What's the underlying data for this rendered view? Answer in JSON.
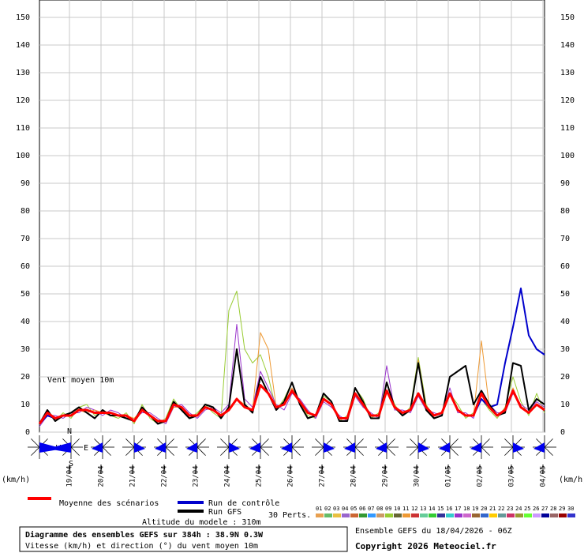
{
  "chart_data": {
    "type": "line",
    "ylim": [
      0,
      150
    ],
    "yticks": [
      0,
      10,
      20,
      30,
      40,
      50,
      60,
      70,
      80,
      90,
      100,
      110,
      120,
      130,
      140,
      150
    ],
    "grid": true,
    "categories": [
      null,
      null,
      null,
      "19/04",
      null,
      null,
      null,
      "20/04",
      null,
      null,
      null,
      "21/04",
      null,
      null,
      null,
      "22/04",
      null,
      null,
      null,
      "23/04",
      null,
      null,
      null,
      "24/04",
      null,
      null,
      null,
      "25/04",
      null,
      null,
      null,
      "26/04",
      null,
      null,
      null,
      "27/04",
      null,
      null,
      null,
      "28/04",
      null,
      null,
      null,
      "29/04",
      null,
      null,
      null,
      "30/04",
      null,
      null,
      null,
      "01/05",
      null,
      null,
      null,
      "02/05",
      null,
      null,
      null,
      "03/05",
      null,
      null,
      null,
      "04/05",
      null
    ],
    "series": [
      {
        "name": "Moyenne des scénarios",
        "color": "#ff0000",
        "values": [
          3,
          7,
          5,
          6,
          6,
          8,
          8,
          7,
          7,
          7,
          6,
          6,
          4,
          8,
          6,
          4,
          4,
          10,
          9,
          6,
          6,
          9,
          8,
          6,
          8,
          12,
          9,
          8,
          17,
          14,
          9,
          10,
          15,
          11,
          7,
          6,
          12,
          10,
          5,
          5,
          14,
          10,
          6,
          6,
          15,
          9,
          7,
          8,
          14,
          9,
          6,
          7,
          14,
          8,
          6,
          6,
          14,
          9,
          6,
          8,
          15,
          9,
          7,
          10,
          8
        ]
      },
      {
        "name": "Run de contrôle",
        "color": "#0000cc",
        "values": [
          3,
          6,
          5,
          6,
          6,
          8,
          8,
          7,
          7,
          7,
          6,
          6,
          4,
          8,
          6,
          4,
          4,
          10,
          9,
          6,
          6,
          9,
          8,
          6,
          8,
          12,
          9,
          8,
          17,
          14,
          9,
          10,
          15,
          11,
          7,
          6,
          12,
          10,
          5,
          5,
          14,
          10,
          6,
          6,
          15,
          9,
          7,
          8,
          14,
          9,
          6,
          7,
          14,
          8,
          6,
          6,
          12,
          9,
          10,
          25,
          38,
          52,
          35,
          30,
          28
        ]
      },
      {
        "name": "Run GFS",
        "color": "#000000",
        "values": [
          3,
          8,
          4,
          6,
          7,
          9,
          7,
          5,
          8,
          6,
          6,
          5,
          4,
          9,
          6,
          3,
          4,
          11,
          8,
          5,
          6,
          10,
          9,
          5,
          9,
          30,
          10,
          7,
          20,
          14,
          8,
          11,
          18,
          10,
          5,
          6,
          14,
          11,
          4,
          4,
          16,
          11,
          5,
          5,
          18,
          9,
          6,
          8,
          25,
          8,
          5,
          6,
          20,
          22,
          24,
          10,
          15,
          10,
          6,
          7,
          25,
          24,
          8,
          12,
          10
        ]
      }
    ],
    "perturbations": [
      {
        "color": "#99cc33",
        "values": [
          3,
          8,
          4,
          7,
          5,
          9,
          10,
          6,
          8,
          6,
          5,
          7,
          3,
          10,
          5,
          3,
          5,
          12,
          8,
          5,
          7,
          10,
          7,
          5,
          44,
          51,
          30,
          25,
          28,
          20,
          8,
          12,
          18,
          10,
          6,
          5,
          13,
          11,
          4,
          6,
          16,
          12,
          5,
          7,
          18,
          10,
          6,
          9,
          27,
          10,
          5,
          6,
          14,
          10,
          5,
          7,
          12,
          8,
          5,
          9,
          20,
          11,
          6,
          14,
          7
        ]
      },
      {
        "color": "#9933cc",
        "values": [
          2,
          6,
          6,
          5,
          7,
          7,
          9,
          8,
          6,
          8,
          7,
          5,
          5,
          7,
          7,
          5,
          3,
          9,
          10,
          7,
          5,
          8,
          9,
          7,
          10,
          39,
          12,
          9,
          22,
          16,
          10,
          8,
          14,
          12,
          8,
          5,
          11,
          9,
          6,
          4,
          13,
          9,
          7,
          5,
          24,
          8,
          8,
          7,
          13,
          8,
          7,
          6,
          16,
          7,
          7,
          5,
          15,
          10,
          7,
          7,
          14,
          10,
          8,
          11,
          9
        ]
      },
      {
        "color": "#ee9933",
        "values": [
          3,
          7,
          5,
          6,
          6,
          8,
          7,
          8,
          7,
          6,
          6,
          6,
          5,
          8,
          6,
          4,
          4,
          9,
          9,
          6,
          6,
          9,
          8,
          6,
          8,
          12,
          10,
          8,
          36,
          30,
          9,
          10,
          16,
          11,
          7,
          6,
          12,
          10,
          5,
          5,
          14,
          10,
          6,
          6,
          15,
          9,
          7,
          8,
          26,
          9,
          6,
          7,
          14,
          8,
          6,
          6,
          33,
          9,
          6,
          8,
          16,
          9,
          7,
          10,
          8
        ]
      }
    ],
    "annotation": "Vent moyen 10m",
    "unit_label": "(km/h)",
    "compass": [
      "N",
      "W",
      "E",
      "S"
    ],
    "perturbation_legend_title": "30 Perts.",
    "perturbation_legend": [
      {
        "label": "01",
        "color": "#e8a050"
      },
      {
        "label": "02",
        "color": "#66bb66"
      },
      {
        "label": "03",
        "color": "#e8c040"
      },
      {
        "label": "04",
        "color": "#9966cc"
      },
      {
        "label": "05",
        "color": "#cc6633"
      },
      {
        "label": "06",
        "color": "#339933"
      },
      {
        "label": "07",
        "color": "#3399ff"
      },
      {
        "label": "08",
        "color": "#cc9966"
      },
      {
        "label": "09",
        "color": "#99cc33"
      },
      {
        "label": "10",
        "color": "#666633"
      },
      {
        "label": "11",
        "color": "#ee9933"
      },
      {
        "label": "12",
        "color": "#cc3333"
      },
      {
        "label": "13",
        "color": "#66cc99"
      },
      {
        "label": "14",
        "color": "#33cc33"
      },
      {
        "label": "15",
        "color": "#333399"
      },
      {
        "label": "16",
        "color": "#33cccc"
      },
      {
        "label": "17",
        "color": "#9933cc"
      },
      {
        "label": "18",
        "color": "#cc66cc"
      },
      {
        "label": "19",
        "color": "#996633"
      },
      {
        "label": "20",
        "color": "#3366cc"
      },
      {
        "label": "21",
        "color": "#ffcc00"
      },
      {
        "label": "22",
        "color": "#669999"
      },
      {
        "label": "23",
        "color": "#cc3366"
      },
      {
        "label": "24",
        "color": "#999933"
      },
      {
        "label": "25",
        "color": "#66ff33"
      },
      {
        "label": "26",
        "color": "#cc99ff"
      },
      {
        "label": "27",
        "color": "#000099"
      },
      {
        "label": "28",
        "color": "#996666"
      },
      {
        "label": "29",
        "color": "#990000"
      },
      {
        "label": "30",
        "color": "#3333cc"
      }
    ],
    "altitude": "Altitude du modele : 310m",
    "footer_title": "Diagramme des ensembles GEFS sur 384h : 38.9N 0.3W",
    "footer_subtitle": "Vitesse (km/h) et direction (°) du vent moyen 10m",
    "run_info": "Ensemble GEFS du 18/04/2026 - 06Z",
    "copyright": "Copyright 2026 Meteociel.fr"
  }
}
